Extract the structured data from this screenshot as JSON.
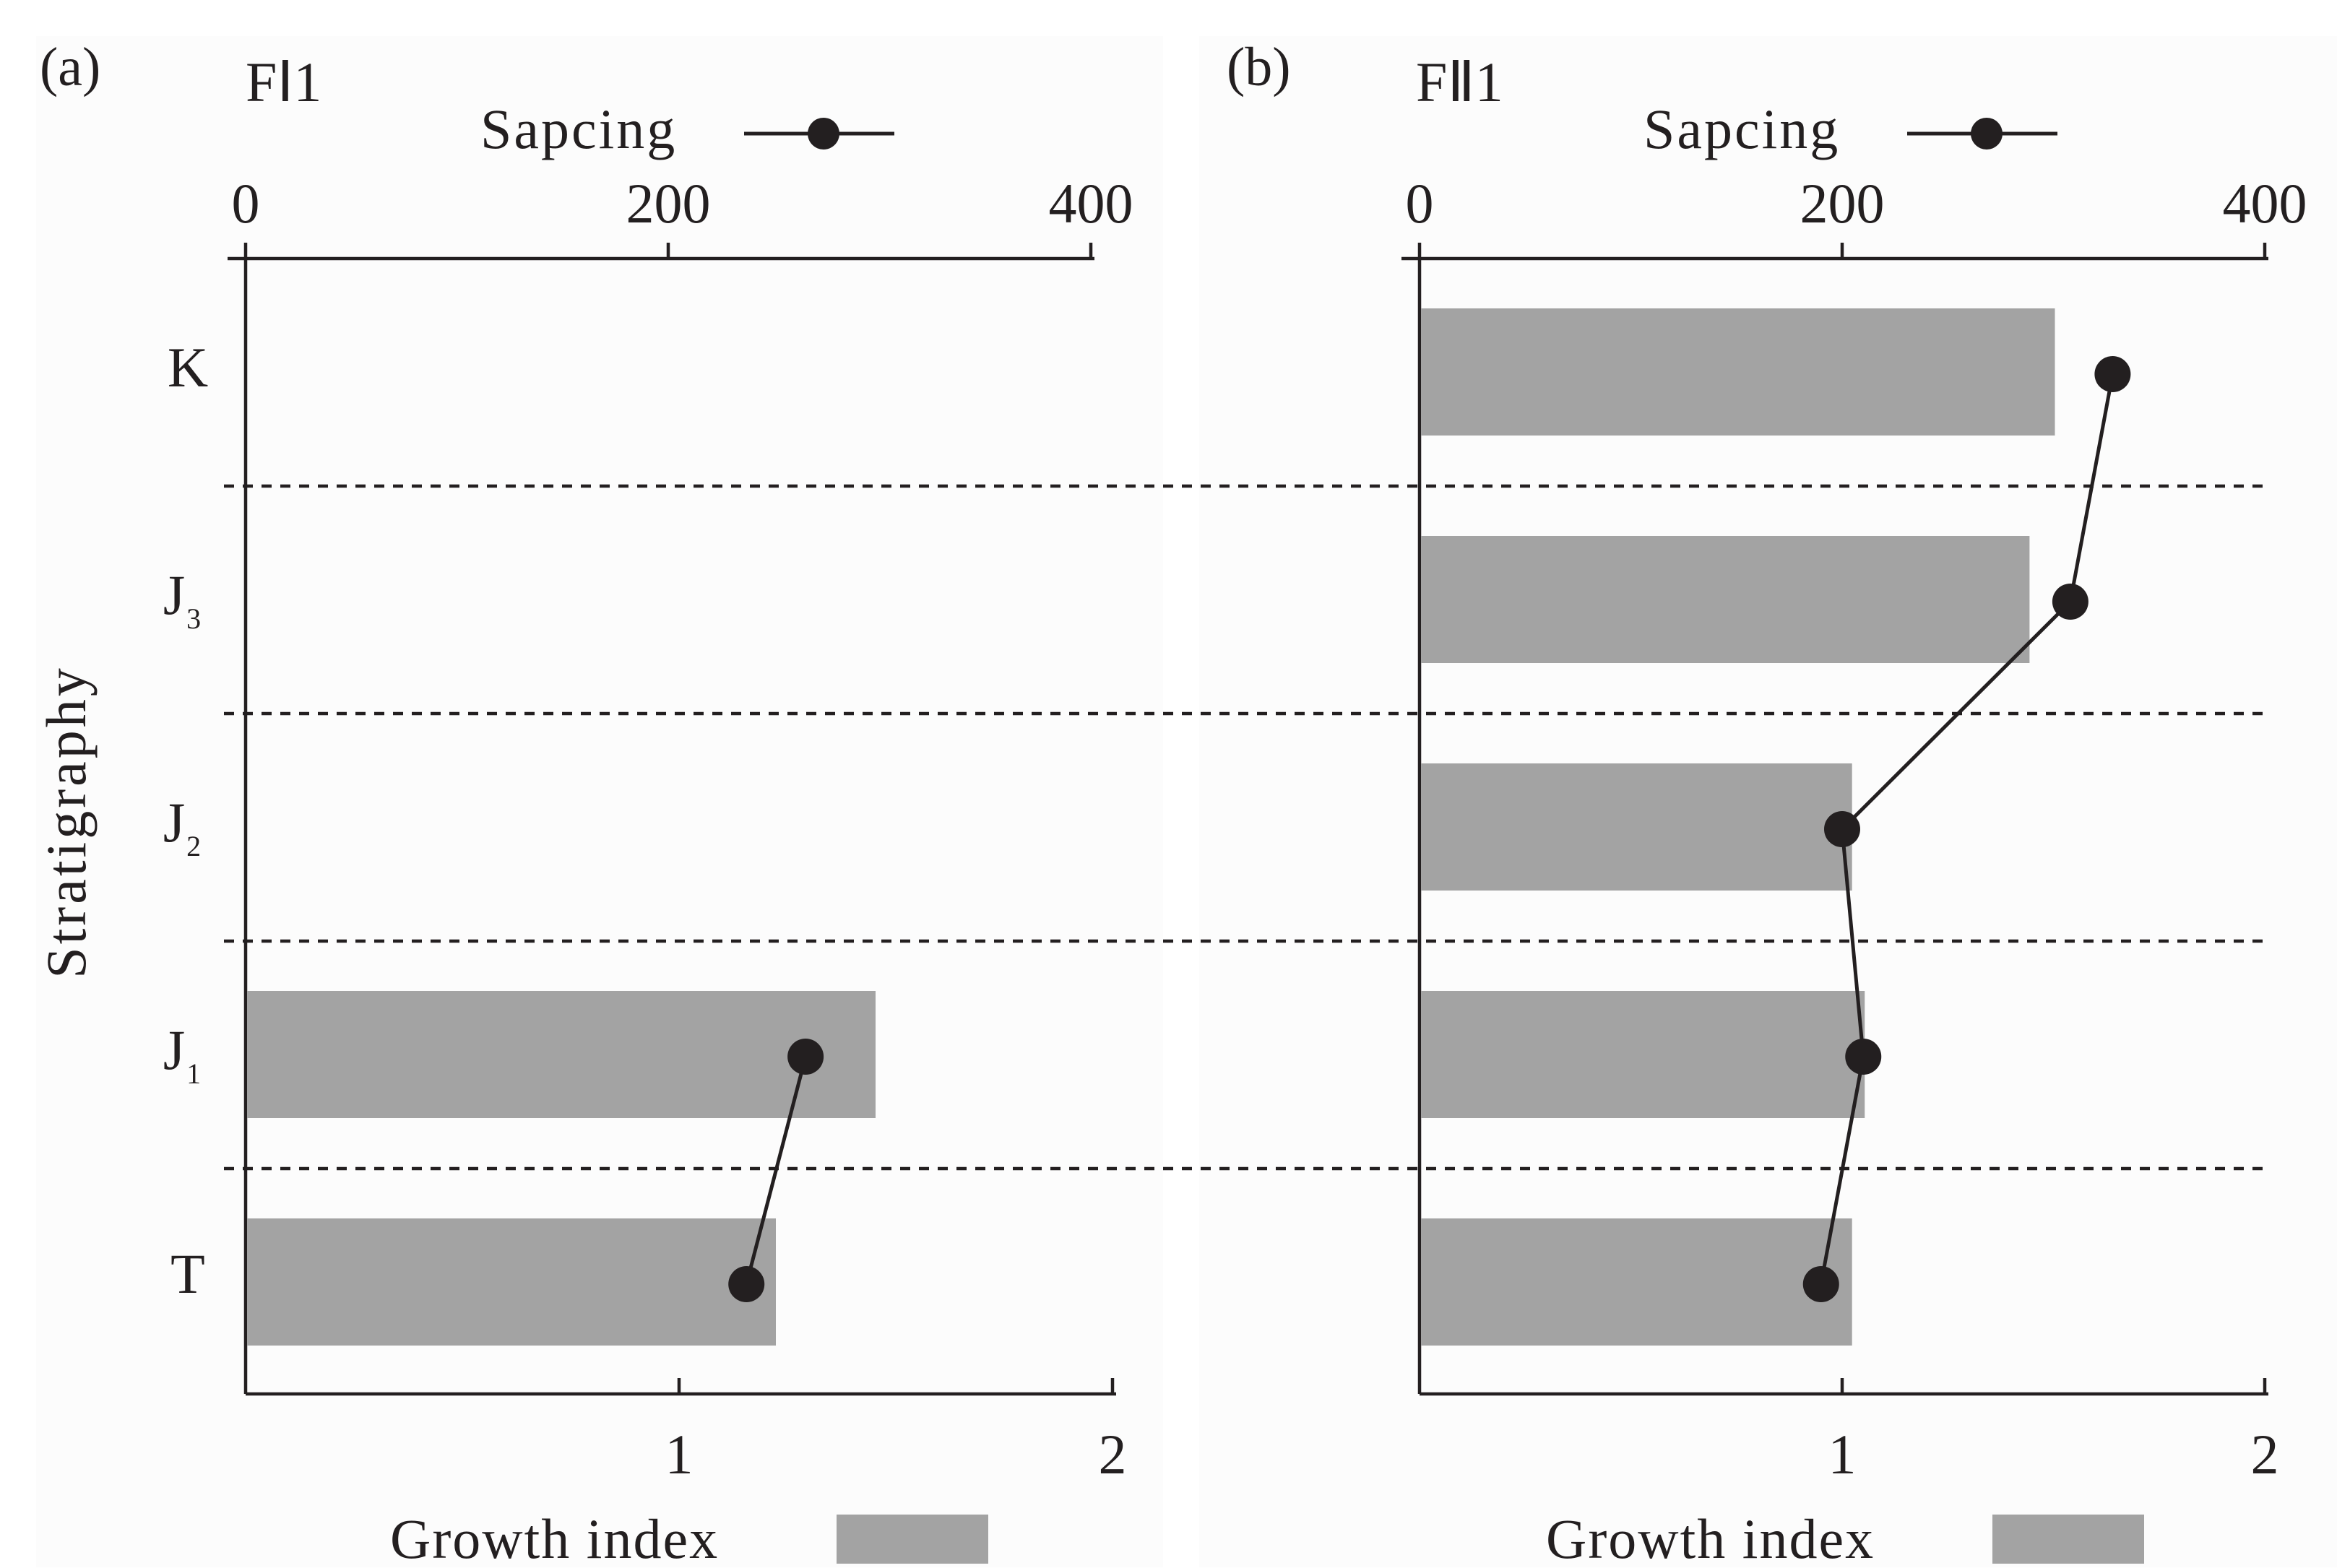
{
  "y_axis_title": "Stratigraphy",
  "strata": [
    "K",
    "J",
    "J",
    "J",
    "T"
  ],
  "strata_subscripts": [
    "",
    "3",
    "2",
    "1",
    ""
  ],
  "legend": {
    "spacing_label": "Sapcing",
    "growth_label": "Growth index"
  },
  "colors": {
    "bar": "#a3a3a3",
    "ink": "#231f20",
    "panel_bg": "#fcfcfc"
  },
  "chart_data": [
    {
      "type": "bar",
      "panel_label": "(a)",
      "title": "FⅠ1",
      "categories": [
        "K",
        "J3",
        "J2",
        "J1",
        "T"
      ],
      "series": [
        {
          "name": "Growth index",
          "axis": "bottom",
          "values": [
            null,
            null,
            null,
            1.45,
            1.22
          ]
        },
        {
          "name": "Sapcing",
          "axis": "top",
          "type": "line",
          "values": [
            null,
            null,
            null,
            265,
            237
          ]
        }
      ],
      "top_axis": {
        "ticks": [
          0,
          200,
          400
        ],
        "range": [
          0,
          400
        ]
      },
      "bottom_axis": {
        "ticks": [
          1,
          2
        ],
        "range": [
          0,
          2
        ]
      }
    },
    {
      "type": "bar",
      "panel_label": "(b)",
      "title": "FⅡ1",
      "categories": [
        "K",
        "J3",
        "J2",
        "J1",
        "T"
      ],
      "series": [
        {
          "name": "Growth index",
          "axis": "bottom",
          "values": [
            1.5,
            1.44,
            1.02,
            1.05,
            1.02
          ]
        },
        {
          "name": "Sapcing",
          "axis": "top",
          "type": "line",
          "values": [
            328,
            308,
            200,
            210,
            190
          ]
        }
      ],
      "top_axis": {
        "ticks": [
          0,
          200,
          400
        ],
        "range": [
          0,
          400
        ]
      },
      "bottom_axis": {
        "ticks": [
          1,
          2
        ],
        "range": [
          0,
          2
        ]
      }
    }
  ]
}
